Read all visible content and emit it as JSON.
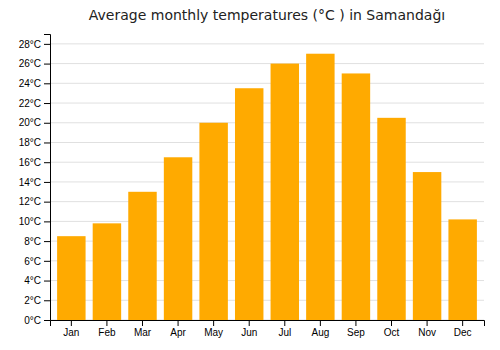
{
  "chart_data": {
    "type": "bar",
    "title": "Average monthly temperatures (°C ) in Samandağı",
    "categories": [
      "Jan",
      "Feb",
      "Mar",
      "Apr",
      "May",
      "Jun",
      "Jul",
      "Aug",
      "Sep",
      "Oct",
      "Nov",
      "Dec"
    ],
    "values": [
      8.5,
      9.8,
      13.0,
      16.5,
      20.0,
      23.5,
      26.0,
      27.0,
      25.0,
      20.5,
      15.0,
      10.2
    ],
    "color": "#FFAA00",
    "ylim": [
      0,
      29
    ],
    "yticks": [
      {
        "value": 0,
        "label": "0°C"
      },
      {
        "value": 2,
        "label": "2°C"
      },
      {
        "value": 4,
        "label": "4°C"
      },
      {
        "value": 6,
        "label": "6°C"
      },
      {
        "value": 8,
        "label": "8°C"
      },
      {
        "value": 10,
        "label": "10°C"
      },
      {
        "value": 12,
        "label": "12°C"
      },
      {
        "value": 14,
        "label": "14°C"
      },
      {
        "value": 16,
        "label": "16°C"
      },
      {
        "value": 18,
        "label": "18°C"
      },
      {
        "value": 20,
        "label": "20°C"
      },
      {
        "value": 22,
        "label": "22°C"
      },
      {
        "value": 24,
        "label": "24°C"
      },
      {
        "value": 26,
        "label": "26°C"
      },
      {
        "value": 28,
        "label": "28°C"
      }
    ],
    "grid": true
  }
}
